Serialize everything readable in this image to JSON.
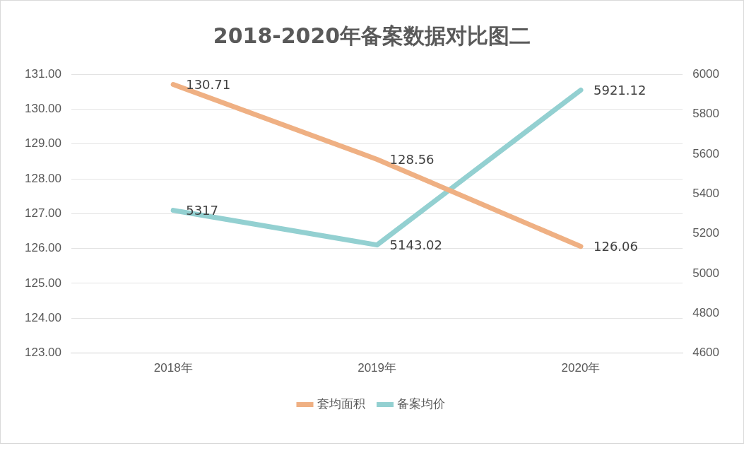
{
  "chart_data": {
    "type": "line",
    "title": "2018-2020年备案数据对比图二",
    "categories": [
      "2018年",
      "2019年",
      "2020年"
    ],
    "series": [
      {
        "name": "套均面积",
        "color": "#efb083",
        "values": [
          130.71,
          128.56,
          126.06
        ]
      },
      {
        "name": "备案均价",
        "color": "#93d0d1",
        "values": [
          5317,
          5143.02,
          5921.12
        ],
        "axis": "y2"
      }
    ],
    "ylim": [
      123,
      131
    ],
    "yticks": [
      {
        "value": 123,
        "label": "123.00"
      },
      {
        "value": 124,
        "label": "124.00"
      },
      {
        "value": 125,
        "label": "125.00"
      },
      {
        "value": 126,
        "label": "126.00"
      },
      {
        "value": 127,
        "label": "127.00"
      },
      {
        "value": 128,
        "label": "128.00"
      },
      {
        "value": 129,
        "label": "129.00"
      },
      {
        "value": 130,
        "label": "130.00"
      },
      {
        "value": 131,
        "label": "131.00"
      }
    ],
    "y2lim": [
      4600,
      6000
    ],
    "y2ticks": [
      4600,
      4800,
      5000,
      5200,
      5400,
      5600,
      5800,
      6000
    ],
    "grid": "y",
    "legend": "bottom",
    "marker": "none",
    "line_style": "solid",
    "data_labels": true
  }
}
